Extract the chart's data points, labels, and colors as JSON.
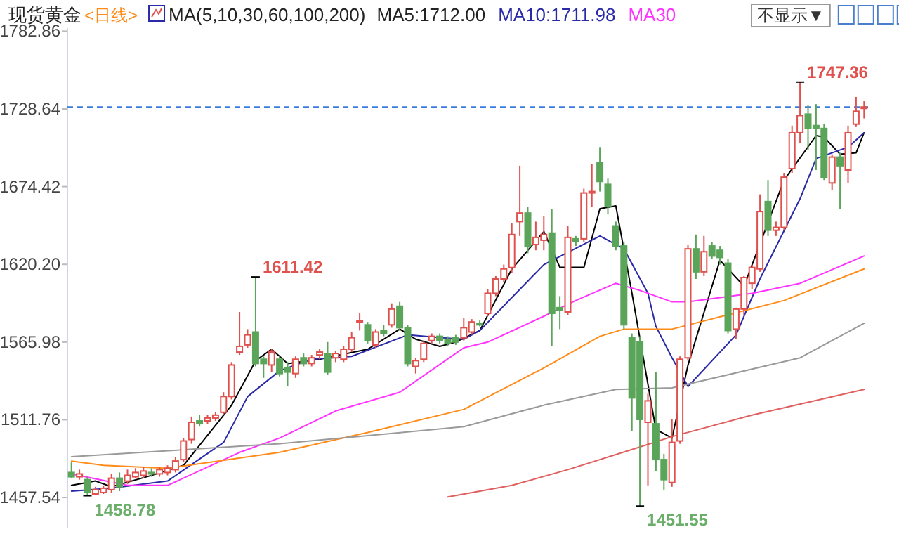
{
  "chart_data": {
    "type": "candlestick",
    "title": "现货黄金",
    "subtitle": "<日线>",
    "legend_title": "MA(5,10,30,60,100,200)",
    "legend": "top",
    "categories": [
      null,
      null,
      null,
      null,
      null,
      null,
      null,
      null,
      null,
      null,
      null,
      null,
      null,
      null,
      null,
      null,
      null,
      null,
      null,
      null,
      null,
      null,
      null,
      null,
      null,
      null,
      null,
      null,
      null,
      null,
      null,
      null,
      null,
      null,
      null,
      null,
      null,
      null,
      null,
      null,
      null,
      null,
      null,
      null,
      null,
      null,
      null,
      null,
      null,
      null,
      null,
      null,
      null,
      null,
      null,
      null,
      null,
      null,
      null,
      null,
      null,
      null,
      null,
      null,
      null,
      null,
      null,
      null,
      null,
      null,
      null,
      null,
      null,
      null,
      null,
      null,
      null,
      null,
      null,
      null,
      null,
      null,
      null,
      null,
      null,
      null,
      null,
      null,
      null,
      null,
      null,
      null,
      null,
      null,
      null,
      null,
      null,
      null,
      null,
      null
    ],
    "ohlc": [
      [
        1475,
        1482,
        1471,
        1472
      ],
      [
        1472,
        1477,
        1470,
        1474
      ],
      [
        1470,
        1472,
        1458.78,
        1461
      ],
      [
        1460,
        1465,
        1459,
        1463
      ],
      [
        1461,
        1466,
        1460,
        1464
      ],
      [
        1463,
        1474,
        1461,
        1471
      ],
      [
        1471,
        1475,
        1462,
        1465
      ],
      [
        1469,
        1477,
        1467,
        1473
      ],
      [
        1472,
        1478,
        1471,
        1475
      ],
      [
        1473,
        1479,
        1471,
        1476
      ],
      [
        1475,
        1478,
        1472,
        1474
      ],
      [
        1474,
        1479,
        1472,
        1477
      ],
      [
        1475,
        1480,
        1473,
        1478
      ],
      [
        1477,
        1486,
        1475,
        1483
      ],
      [
        1484,
        1499,
        1482,
        1497
      ],
      [
        1498,
        1514,
        1495,
        1510
      ],
      [
        1511,
        1515,
        1507,
        1509
      ],
      [
        1511,
        1515,
        1509,
        1513
      ],
      [
        1513,
        1517,
        1511,
        1515
      ],
      [
        1517,
        1531,
        1515,
        1528
      ],
      [
        1528,
        1552,
        1526,
        1550
      ],
      [
        1559,
        1587,
        1557,
        1563
      ],
      [
        1564,
        1575,
        1562,
        1571
      ],
      [
        1573,
        1611.42,
        1549,
        1551
      ],
      [
        1554,
        1556,
        1541,
        1551
      ],
      [
        1550,
        1561,
        1545,
        1559
      ],
      [
        1554,
        1556,
        1542,
        1544
      ],
      [
        1548,
        1552,
        1535,
        1545
      ],
      [
        1544,
        1556,
        1541,
        1554
      ],
      [
        1555,
        1558,
        1549,
        1551
      ],
      [
        1551,
        1557,
        1549,
        1555
      ],
      [
        1557,
        1561,
        1554,
        1559
      ],
      [
        1558,
        1566,
        1543,
        1545
      ],
      [
        1555,
        1560,
        1552,
        1558
      ],
      [
        1554,
        1563,
        1552,
        1561
      ],
      [
        1561,
        1573,
        1559,
        1569
      ],
      [
        1580,
        1586,
        1574,
        1581
      ],
      [
        1578,
        1580,
        1565,
        1567
      ],
      [
        1564,
        1575,
        1562,
        1573
      ],
      [
        1574,
        1578,
        1570,
        1572
      ],
      [
        1578,
        1593,
        1576,
        1589
      ],
      [
        1591,
        1594,
        1574,
        1576
      ],
      [
        1576,
        1578,
        1549,
        1551
      ],
      [
        1549,
        1555,
        1544,
        1553
      ],
      [
        1554,
        1567,
        1552,
        1565
      ],
      [
        1567,
        1572,
        1565,
        1570
      ],
      [
        1570,
        1572,
        1565,
        1567
      ],
      [
        1568,
        1570,
        1563,
        1565
      ],
      [
        1569,
        1571,
        1564,
        1566
      ],
      [
        1569,
        1583,
        1567,
        1576
      ],
      [
        1573,
        1582,
        1571,
        1580
      ],
      [
        1579,
        1581,
        1577,
        1578
      ],
      [
        1586,
        1603,
        1584,
        1600
      ],
      [
        1600,
        1612,
        1598,
        1610
      ],
      [
        1610,
        1620,
        1608,
        1617
      ],
      [
        1618,
        1649,
        1614,
        1641
      ],
      [
        1650,
        1689,
        1640,
        1656
      ],
      [
        1656,
        1660,
        1628,
        1633
      ],
      [
        1634,
        1650,
        1630,
        1639
      ],
      [
        1637,
        1654,
        1630,
        1641
      ],
      [
        1642,
        1659,
        1563,
        1586
      ],
      [
        1590,
        1598,
        1575,
        1588
      ],
      [
        1587,
        1647,
        1585,
        1639
      ],
      [
        1638,
        1640,
        1633,
        1636
      ],
      [
        1638,
        1673,
        1636,
        1670
      ],
      [
        1670,
        1690,
        1660,
        1671
      ],
      [
        1691,
        1702,
        1671,
        1678
      ],
      [
        1676,
        1680,
        1655,
        1661
      ],
      [
        1647,
        1650,
        1630,
        1633
      ],
      [
        1633,
        1636,
        1575,
        1578
      ],
      [
        1569,
        1572,
        1504,
        1527
      ],
      [
        1566,
        1570,
        1451.55,
        1512
      ],
      [
        1510,
        1530,
        1466,
        1525
      ],
      [
        1509,
        1545,
        1476,
        1484
      ],
      [
        1484,
        1488,
        1463,
        1470
      ],
      [
        1468,
        1512,
        1465,
        1496
      ],
      [
        1497,
        1556,
        1495,
        1554
      ],
      [
        1555,
        1634,
        1553,
        1631
      ],
      [
        1631,
        1641,
        1610,
        1615
      ],
      [
        1615,
        1640,
        1612,
        1629
      ],
      [
        1633,
        1636,
        1624,
        1626
      ],
      [
        1630,
        1633,
        1620,
        1625
      ],
      [
        1621,
        1624,
        1572,
        1574
      ],
      [
        1575,
        1590,
        1568,
        1589
      ],
      [
        1589,
        1612,
        1585,
        1611
      ],
      [
        1607,
        1620,
        1603,
        1618
      ],
      [
        1617,
        1669,
        1615,
        1657
      ],
      [
        1664,
        1679,
        1640,
        1644
      ],
      [
        1644,
        1650,
        1640,
        1646
      ],
      [
        1646,
        1684,
        1644,
        1681
      ],
      [
        1687,
        1717,
        1684,
        1712
      ],
      [
        1712,
        1747.36,
        1705,
        1724
      ],
      [
        1725,
        1731,
        1700,
        1715
      ],
      [
        1717,
        1732,
        1686,
        1715
      ],
      [
        1715,
        1718,
        1679,
        1681
      ],
      [
        1677,
        1697,
        1672,
        1695
      ],
      [
        1695,
        1698,
        1659,
        1689
      ],
      [
        1686,
        1717,
        1677,
        1712
      ],
      [
        1718,
        1737,
        1716,
        1727
      ],
      [
        1729,
        1734,
        1722,
        1730
      ]
    ],
    "series": [
      {
        "type": "line",
        "name": "MA5:1712.00",
        "color": "#000000",
        "values": [
          1466,
          null,
          null,
          1469,
          null,
          1465,
          null,
          null,
          null,
          null,
          1473,
          null,
          null,
          null,
          1480,
          null,
          null,
          null,
          null,
          null,
          1522,
          null,
          null,
          1553,
          null,
          1561,
          null,
          1551,
          null,
          null,
          null,
          1554,
          null,
          null,
          null,
          null,
          null,
          1561,
          null,
          null,
          null,
          1575,
          null,
          1568,
          null,
          null,
          1563,
          null,
          1566,
          null,
          null,
          1574,
          null,
          null,
          null,
          1617,
          null,
          null,
          null,
          1643,
          null,
          1618,
          null,
          null,
          1618,
          null,
          1659,
          null,
          1661,
          null,
          1600,
          null,
          null,
          1505,
          null,
          1499,
          null,
          1550,
          null,
          null,
          null,
          1623,
          null,
          null,
          1605,
          null,
          null,
          null,
          null,
          1679,
          null,
          null,
          null,
          1710,
          1709,
          null,
          1697,
          null,
          1698,
          1712
        ]
      },
      {
        "type": "line",
        "name": "MA10:1711.98",
        "color": "#2a2aa8",
        "values": [
          1462,
          null,
          null,
          null,
          null,
          1464,
          null,
          null,
          null,
          null,
          null,
          null,
          1469,
          null,
          null,
          null,
          null,
          null,
          null,
          1496,
          null,
          null,
          1528,
          null,
          null,
          null,
          1546,
          null,
          null,
          null,
          1554,
          null,
          null,
          null,
          null,
          1556,
          null,
          null,
          null,
          null,
          null,
          null,
          1571,
          null,
          null,
          null,
          1569,
          null,
          null,
          1568,
          null,
          1574,
          null,
          null,
          null,
          null,
          null,
          null,
          null,
          1620,
          null,
          null,
          null,
          null,
          null,
          null,
          1640,
          null,
          null,
          1631,
          null,
          null,
          1600,
          1577,
          null,
          1555,
          null,
          1535,
          null,
          null,
          null,
          null,
          null,
          1571,
          null,
          null,
          1610,
          null,
          null,
          null,
          null,
          1666,
          null,
          1694,
          null,
          null,
          null,
          1702,
          null,
          1712
        ]
      },
      {
        "type": "line",
        "name": "MA30",
        "color": "#ff33ff",
        "values": [
          1474,
          null,
          null,
          null,
          null,
          null,
          null,
          1466,
          null,
          null,
          null,
          null,
          1466,
          null,
          null,
          null,
          null,
          null,
          null,
          null,
          null,
          1489,
          null,
          null,
          null,
          null,
          1499,
          null,
          null,
          null,
          null,
          null,
          null,
          1518,
          null,
          null,
          null,
          null,
          null,
          null,
          null,
          1531,
          null,
          null,
          null,
          null,
          null,
          null,
          null,
          1562,
          null,
          null,
          1566,
          null,
          null,
          null,
          null,
          null,
          null,
          1584,
          null,
          null,
          null,
          1595,
          null,
          null,
          null,
          null,
          1607,
          null,
          null,
          1602,
          null,
          null,
          null,
          1594,
          null,
          1594,
          null,
          null,
          null,
          null,
          null,
          null,
          null,
          1600,
          null,
          null,
          null,
          null,
          null,
          1607,
          null,
          null,
          null,
          null,
          null,
          null,
          null,
          1626
        ]
      },
      {
        "type": "line",
        "color": "#ff8c1a",
        "values": [
          1483,
          null,
          null,
          null,
          1480,
          null,
          null,
          null,
          null,
          null,
          null,
          null,
          1478,
          null,
          null,
          null,
          null,
          null,
          null,
          null,
          null,
          null,
          null,
          null,
          null,
          null,
          1489,
          null,
          null,
          null,
          null,
          null,
          null,
          null,
          null,
          null,
          null,
          1503,
          null,
          null,
          null,
          null,
          null,
          null,
          null,
          null,
          null,
          null,
          null,
          1519,
          null,
          null,
          null,
          null,
          null,
          null,
          null,
          null,
          null,
          1548,
          null,
          null,
          null,
          null,
          null,
          null,
          1570,
          null,
          null,
          1575,
          null,
          null,
          null,
          null,
          null,
          1575,
          null,
          null,
          null,
          null,
          null,
          null,
          1585,
          null,
          null,
          null,
          null,
          null,
          null,
          1595,
          null,
          null,
          null,
          null,
          null,
          null,
          null,
          null,
          null,
          1617
        ]
      },
      {
        "type": "line",
        "color": "#9a9a9a",
        "values": [
          1486,
          null,
          null,
          null,
          null,
          null,
          null,
          null,
          null,
          null,
          null,
          null,
          null,
          null,
          null,
          null,
          null,
          null,
          null,
          null,
          null,
          null,
          null,
          null,
          null,
          null,
          1495,
          null,
          null,
          null,
          null,
          null,
          null,
          null,
          null,
          null,
          null,
          null,
          null,
          null,
          null,
          null,
          null,
          null,
          null,
          null,
          null,
          null,
          null,
          1507,
          null,
          null,
          null,
          null,
          null,
          null,
          null,
          null,
          null,
          1522,
          null,
          null,
          null,
          null,
          null,
          null,
          null,
          null,
          1533,
          null,
          null,
          null,
          null,
          null,
          null,
          1534,
          null,
          null,
          null,
          null,
          null,
          null,
          null,
          null,
          null,
          null,
          null,
          null,
          null,
          null,
          null,
          1555,
          null,
          null,
          null,
          null,
          null,
          null,
          null,
          1579
        ]
      },
      {
        "type": "line",
        "color": "#e06060",
        "values": [
          null,
          null,
          null,
          null,
          null,
          null,
          null,
          null,
          null,
          null,
          null,
          null,
          null,
          null,
          null,
          null,
          null,
          null,
          null,
          null,
          null,
          null,
          null,
          null,
          null,
          null,
          null,
          null,
          null,
          null,
          null,
          null,
          null,
          null,
          null,
          null,
          null,
          null,
          null,
          null,
          null,
          null,
          null,
          null,
          null,
          null,
          null,
          1458,
          null,
          null,
          null,
          null,
          null,
          null,
          null,
          1466,
          null,
          null,
          null,
          null,
          null,
          null,
          1477,
          null,
          null,
          null,
          null,
          null,
          null,
          null,
          1491,
          null,
          null,
          null,
          null,
          1500,
          null,
          null,
          null,
          null,
          null,
          null,
          null,
          null,
          null,
          1515,
          null,
          null,
          null,
          null,
          null,
          null,
          null,
          null,
          null,
          null,
          null,
          null,
          null,
          1533
        ]
      }
    ],
    "ylim": [
      1436,
      1785
    ],
    "yticks": [
      1457.54,
      1511.76,
      1565.98,
      {
        "value": 1620.2,
        "label": "1620.20"
      },
      1674.42,
      1728.64,
      1782.86
    ],
    "ref_lines": [
      {
        "axis": "y",
        "value": 1730,
        "color": "#3a7be0",
        "line_style": "dashed"
      }
    ],
    "annotations": [
      "1611.42",
      "1747.36",
      "1458.78",
      "1451.55",
      "不显示▼"
    ]
  }
}
